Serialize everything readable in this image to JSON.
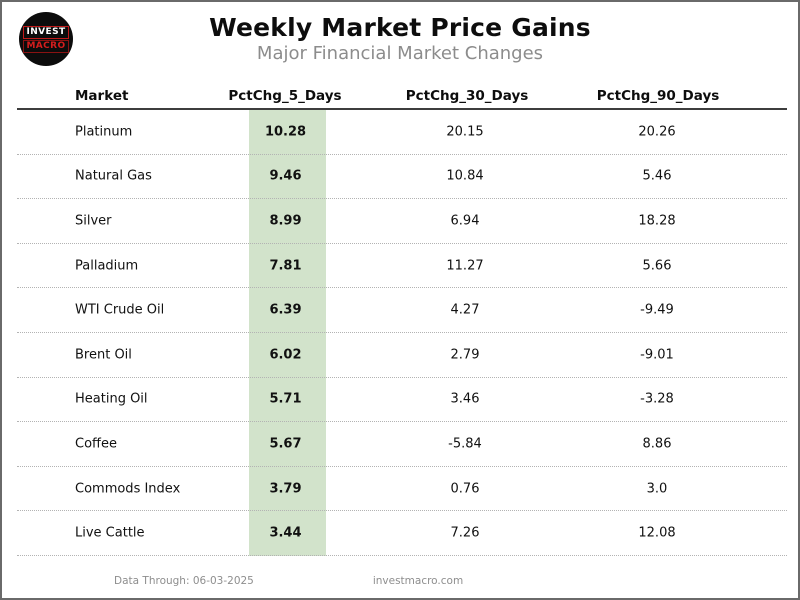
{
  "page": {
    "title": "Weekly Market Price Gains",
    "subtitle": "Major Financial Market Changes"
  },
  "logo": {
    "line1": "INVEST",
    "line2": "MACRO"
  },
  "colors": {
    "highlight_green": "#d2e3cb",
    "logo_red": "#d51d1d",
    "subtitle_gray": "#8c8c8c"
  },
  "table": {
    "columns": [
      "Market",
      "PctChg_5_Days",
      "PctChg_30_Days",
      "PctChg_90_Days"
    ],
    "rows": [
      {
        "market": "Platinum",
        "d5": "10.28",
        "d30": "20.15",
        "d90": "20.26"
      },
      {
        "market": "Natural Gas",
        "d5": "9.46",
        "d30": "10.84",
        "d90": "5.46"
      },
      {
        "market": "Silver",
        "d5": "8.99",
        "d30": "6.94",
        "d90": "18.28"
      },
      {
        "market": "Palladium",
        "d5": "7.81",
        "d30": "11.27",
        "d90": "5.66"
      },
      {
        "market": "WTI Crude Oil",
        "d5": "6.39",
        "d30": "4.27",
        "d90": "-9.49"
      },
      {
        "market": "Brent Oil",
        "d5": "6.02",
        "d30": "2.79",
        "d90": "-9.01"
      },
      {
        "market": "Heating Oil",
        "d5": "5.71",
        "d30": "3.46",
        "d90": "-3.28"
      },
      {
        "market": "Coffee",
        "d5": "5.67",
        "d30": "-5.84",
        "d90": "8.86"
      },
      {
        "market": "Commods Index",
        "d5": "3.79",
        "d30": "0.76",
        "d90": "3.0"
      },
      {
        "market": "Live Cattle",
        "d5": "3.44",
        "d30": "7.26",
        "d90": "12.08"
      }
    ]
  },
  "footer": {
    "data_through": "Data Through: 06-03-2025",
    "site": "investmacro.com"
  },
  "chart_data": {
    "type": "table",
    "title": "Weekly Market Price Gains",
    "subtitle": "Major Financial Market Changes",
    "columns": [
      "Market",
      "PctChg_5_Days",
      "PctChg_30_Days",
      "PctChg_90_Days"
    ],
    "highlighted_column": "PctChg_5_Days",
    "rows": [
      [
        "Platinum",
        10.28,
        20.15,
        20.26
      ],
      [
        "Natural Gas",
        9.46,
        10.84,
        5.46
      ],
      [
        "Silver",
        8.99,
        6.94,
        18.28
      ],
      [
        "Palladium",
        7.81,
        11.27,
        5.66
      ],
      [
        "WTI Crude Oil",
        6.39,
        4.27,
        -9.49
      ],
      [
        "Brent Oil",
        6.02,
        2.79,
        -9.01
      ],
      [
        "Heating Oil",
        5.71,
        3.46,
        -3.28
      ],
      [
        "Coffee",
        5.67,
        -5.84,
        8.86
      ],
      [
        "Commods Index",
        3.79,
        0.76,
        3.0
      ],
      [
        "Live Cattle",
        3.44,
        7.26,
        12.08
      ]
    ],
    "footer": [
      "Data Through: 06-03-2025",
      "investmacro.com"
    ]
  }
}
